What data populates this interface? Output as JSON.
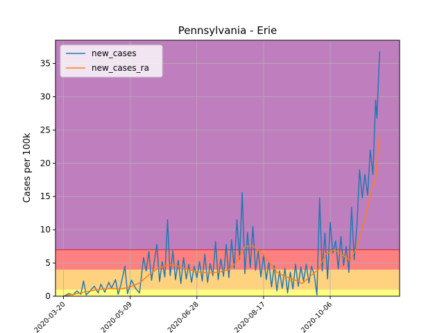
{
  "chart_data": {
    "type": "line",
    "title": "Pennsylvania - Erie",
    "xlabel": "",
    "ylabel": "Cases per 100k",
    "ylim": [
      0,
      38.5
    ],
    "xlim": [
      "2020-03-14",
      "2020-11-27"
    ],
    "yticks": [
      0,
      5,
      10,
      15,
      20,
      25,
      30,
      35
    ],
    "xticks": [
      "2020-03-20",
      "2020-05-09",
      "2020-06-28",
      "2020-08-17",
      "2020-10-06"
    ],
    "xticks_display": [
      "2020-03-20",
      "2020-05-09",
      "2020-06-28",
      "2020-08-17",
      "2020-10-06"
    ],
    "grid": true,
    "legend": {
      "position": "top-left",
      "entries": [
        "new_cases",
        "new_cases_ra"
      ]
    },
    "bands": [
      {
        "from": 0,
        "to": 1,
        "color": "#ffff80"
      },
      {
        "from": 1,
        "to": 4,
        "color": "#ffd27f"
      },
      {
        "from": 4,
        "to": 7,
        "color": "#ff8080"
      },
      {
        "from": 7,
        "to": 38.5,
        "color": "#bf7fbf"
      }
    ],
    "threshold_line": {
      "y": 7,
      "color": "#cc3344"
    },
    "series": [
      {
        "name": "new_cases",
        "color": "#1f77b4",
        "points": [
          [
            "2020-03-20",
            0.0
          ],
          [
            "2020-03-24",
            0.4
          ],
          [
            "2020-03-27",
            0.2
          ],
          [
            "2020-03-30",
            0.8
          ],
          [
            "2020-04-02",
            0.3
          ],
          [
            "2020-04-04",
            2.3
          ],
          [
            "2020-04-06",
            0.2
          ],
          [
            "2020-04-09",
            0.8
          ],
          [
            "2020-04-12",
            1.5
          ],
          [
            "2020-04-15",
            0.5
          ],
          [
            "2020-04-17",
            1.8
          ],
          [
            "2020-04-20",
            0.6
          ],
          [
            "2020-04-23",
            2.1
          ],
          [
            "2020-04-25",
            1.2
          ],
          [
            "2020-04-28",
            2.5
          ],
          [
            "2020-04-30",
            0.3
          ],
          [
            "2020-05-02",
            1.7
          ],
          [
            "2020-05-05",
            4.5
          ],
          [
            "2020-05-07",
            0.4
          ],
          [
            "2020-05-10",
            2.4
          ],
          [
            "2020-05-13",
            1.2
          ],
          [
            "2020-05-16",
            0.5
          ],
          [
            "2020-05-19",
            5.8
          ],
          [
            "2020-05-21",
            3.8
          ],
          [
            "2020-05-23",
            6.7
          ],
          [
            "2020-05-25",
            2.4
          ],
          [
            "2020-05-27",
            5.1
          ],
          [
            "2020-05-29",
            7.8
          ],
          [
            "2020-05-31",
            2.2
          ],
          [
            "2020-06-02",
            5.2
          ],
          [
            "2020-06-04",
            2.9
          ],
          [
            "2020-06-06",
            11.5
          ],
          [
            "2020-06-08",
            3.1
          ],
          [
            "2020-06-10",
            6.8
          ],
          [
            "2020-06-12",
            2.5
          ],
          [
            "2020-06-14",
            5.4
          ],
          [
            "2020-06-16",
            1.9
          ],
          [
            "2020-06-18",
            5.8
          ],
          [
            "2020-06-20",
            2.6
          ],
          [
            "2020-06-22",
            4.8
          ],
          [
            "2020-06-24",
            2.1
          ],
          [
            "2020-06-26",
            4.5
          ],
          [
            "2020-06-28",
            2.8
          ],
          [
            "2020-06-30",
            5.2
          ],
          [
            "2020-07-02",
            2.3
          ],
          [
            "2020-07-04",
            6.3
          ],
          [
            "2020-07-06",
            2.1
          ],
          [
            "2020-07-08",
            4.9
          ],
          [
            "2020-07-10",
            3.1
          ],
          [
            "2020-07-12",
            8.2
          ],
          [
            "2020-07-14",
            2.5
          ],
          [
            "2020-07-16",
            5.6
          ],
          [
            "2020-07-18",
            3.0
          ],
          [
            "2020-07-20",
            7.8
          ],
          [
            "2020-07-22",
            2.8
          ],
          [
            "2020-07-24",
            8.5
          ],
          [
            "2020-07-26",
            4.2
          ],
          [
            "2020-07-28",
            11.5
          ],
          [
            "2020-07-30",
            5.6
          ],
          [
            "2020-08-01",
            15.6
          ],
          [
            "2020-08-03",
            3.4
          ],
          [
            "2020-08-05",
            9.6
          ],
          [
            "2020-08-07",
            4.3
          ],
          [
            "2020-08-09",
            10.5
          ],
          [
            "2020-08-11",
            3.9
          ],
          [
            "2020-08-13",
            6.8
          ],
          [
            "2020-08-15",
            2.9
          ],
          [
            "2020-08-17",
            6.2
          ],
          [
            "2020-08-19",
            2.5
          ],
          [
            "2020-08-21",
            5.1
          ],
          [
            "2020-08-23",
            1.4
          ],
          [
            "2020-08-25",
            4.6
          ],
          [
            "2020-08-27",
            0.8
          ],
          [
            "2020-08-29",
            3.8
          ],
          [
            "2020-08-31",
            1.2
          ],
          [
            "2020-09-02",
            4.2
          ],
          [
            "2020-09-04",
            0.5
          ],
          [
            "2020-09-06",
            3.6
          ],
          [
            "2020-09-08",
            1.1
          ],
          [
            "2020-09-10",
            4.8
          ],
          [
            "2020-09-12",
            1.5
          ],
          [
            "2020-09-14",
            4.4
          ],
          [
            "2020-09-16",
            2.3
          ],
          [
            "2020-09-18",
            4.8
          ],
          [
            "2020-09-20",
            2.0
          ],
          [
            "2020-09-22",
            4.5
          ],
          [
            "2020-09-24",
            3.2
          ],
          [
            "2020-09-26",
            0.2
          ],
          [
            "2020-09-28",
            14.8
          ],
          [
            "2020-09-30",
            3.8
          ],
          [
            "2020-10-02",
            9.5
          ],
          [
            "2020-10-04",
            2.6
          ],
          [
            "2020-10-06",
            11.1
          ],
          [
            "2020-10-08",
            6.5
          ],
          [
            "2020-10-10",
            8.3
          ],
          [
            "2020-10-12",
            4.1
          ],
          [
            "2020-10-14",
            9.0
          ],
          [
            "2020-10-16",
            4.6
          ],
          [
            "2020-10-18",
            7.5
          ],
          [
            "2020-10-20",
            3.6
          ],
          [
            "2020-10-22",
            13.4
          ],
          [
            "2020-10-24",
            5.5
          ],
          [
            "2020-10-26",
            10.6
          ],
          [
            "2020-10-28",
            19.0
          ],
          [
            "2020-10-30",
            14.8
          ],
          [
            "2020-11-01",
            18.3
          ],
          [
            "2020-11-03",
            15.2
          ],
          [
            "2020-11-05",
            22.0
          ],
          [
            "2020-11-07",
            18.3
          ],
          [
            "2020-11-09",
            29.5
          ],
          [
            "2020-11-10",
            26.8
          ],
          [
            "2020-11-12",
            36.8
          ]
        ]
      },
      {
        "name": "new_cases_ra",
        "color": "#ff7f0e",
        "points": [
          [
            "2020-03-20",
            0.0
          ],
          [
            "2020-03-28",
            0.3
          ],
          [
            "2020-04-06",
            0.7
          ],
          [
            "2020-04-15",
            1.0
          ],
          [
            "2020-04-24",
            1.2
          ],
          [
            "2020-05-02",
            1.1
          ],
          [
            "2020-05-09",
            1.4
          ],
          [
            "2020-05-16",
            2.0
          ],
          [
            "2020-05-23",
            3.2
          ],
          [
            "2020-05-30",
            4.2
          ],
          [
            "2020-06-06",
            4.7
          ],
          [
            "2020-06-13",
            4.6
          ],
          [
            "2020-06-20",
            4.1
          ],
          [
            "2020-06-28",
            3.7
          ],
          [
            "2020-07-06",
            3.5
          ],
          [
            "2020-07-14",
            3.6
          ],
          [
            "2020-07-22",
            4.0
          ],
          [
            "2020-07-28",
            5.2
          ],
          [
            "2020-08-03",
            7.5
          ],
          [
            "2020-08-09",
            7.6
          ],
          [
            "2020-08-15",
            6.6
          ],
          [
            "2020-08-21",
            5.2
          ],
          [
            "2020-08-27",
            3.6
          ],
          [
            "2020-09-02",
            3.0
          ],
          [
            "2020-09-09",
            2.5
          ],
          [
            "2020-09-15",
            1.9
          ],
          [
            "2020-09-21",
            3.0
          ],
          [
            "2020-09-27",
            4.0
          ],
          [
            "2020-10-03",
            6.4
          ],
          [
            "2020-10-09",
            7.0
          ],
          [
            "2020-10-15",
            6.2
          ],
          [
            "2020-10-21",
            5.4
          ],
          [
            "2020-10-27",
            7.8
          ],
          [
            "2020-11-02",
            12.5
          ],
          [
            "2020-11-06",
            16.0
          ],
          [
            "2020-11-09",
            17.5
          ],
          [
            "2020-11-12",
            24.5
          ]
        ]
      }
    ]
  }
}
